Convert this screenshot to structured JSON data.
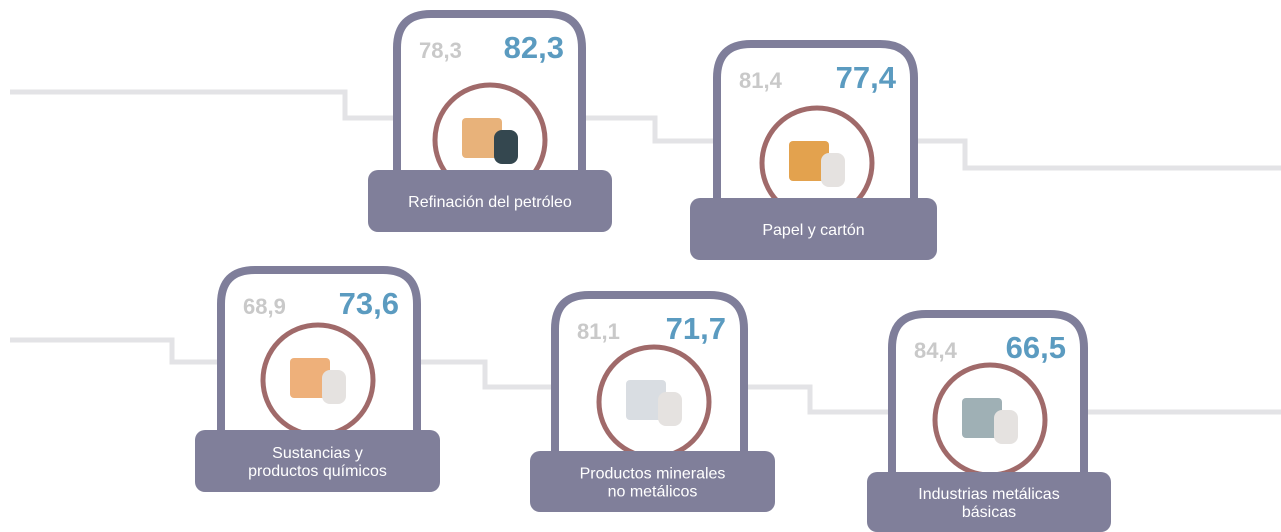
{
  "cards": [
    {
      "label": [
        "Refinación del petróleo"
      ],
      "previous": "78,3",
      "current": "82,3"
    },
    {
      "label": [
        "Papel y cartón"
      ],
      "previous": "81,4",
      "current": "77,4"
    },
    {
      "label": [
        "Sustancias y",
        "productos químicos"
      ],
      "previous": "68,9",
      "current": "73,6"
    },
    {
      "label": [
        "Productos minerales",
        "no metálicos"
      ],
      "previous": "81,1",
      "current": "71,7"
    },
    {
      "label": [
        "Industrias metálicas",
        "básicas"
      ],
      "previous": "84,4",
      "current": "66,5"
    }
  ]
}
